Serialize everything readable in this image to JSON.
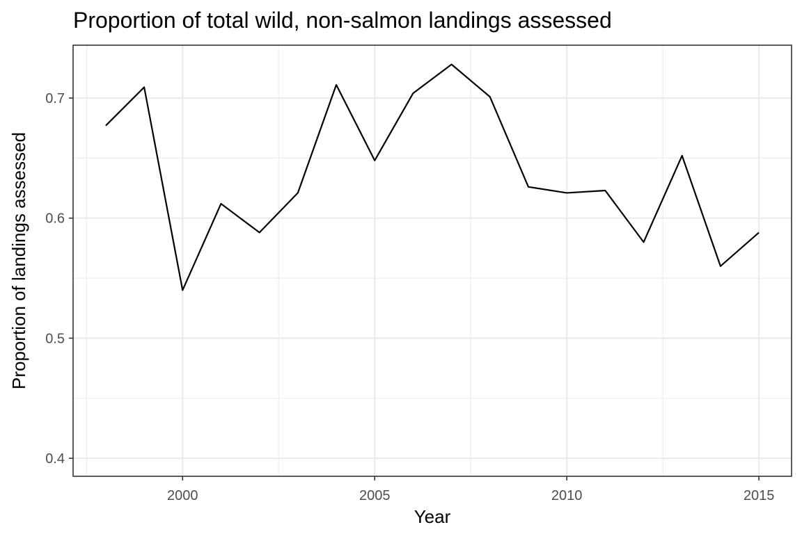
{
  "chart_data": {
    "type": "line",
    "title": "Proportion of total wild, non-salmon landings assessed",
    "xlabel": "Year",
    "ylabel": "Proportion of landings assessed",
    "x": [
      1998,
      1999,
      2000,
      2001,
      2002,
      2003,
      2004,
      2005,
      2006,
      2007,
      2008,
      2009,
      2010,
      2011,
      2012,
      2013,
      2014,
      2015
    ],
    "series": [
      {
        "values": [
          0.677,
          0.709,
          0.54,
          0.612,
          0.588,
          0.621,
          0.711,
          0.648,
          0.704,
          0.728,
          0.701,
          0.626,
          0.621,
          0.623,
          0.58,
          0.652,
          0.56,
          0.588
        ]
      }
    ],
    "xlim": [
      1997.15,
      2015.85
    ],
    "ylim": [
      0.385,
      0.744
    ],
    "x_ticks": [
      2000,
      2005,
      2010,
      2015
    ],
    "x_minor_ticks": [
      1997.5,
      2002.5,
      2007.5,
      2012.5
    ],
    "y_ticks": [
      0.4,
      0.5,
      0.6,
      0.7
    ],
    "y_minor_ticks": [
      0.45,
      0.55,
      0.65
    ],
    "x_tick_labels": [
      "2000",
      "2005",
      "2010",
      "2015"
    ],
    "y_tick_labels": [
      "0.4",
      "0.5",
      "0.6",
      "0.7"
    ],
    "grid": true,
    "legend": "none",
    "colors": {
      "line": "#000000",
      "grid": "#ebebeb",
      "axis": "#333333",
      "tick_text": "#4d4d4d"
    }
  }
}
